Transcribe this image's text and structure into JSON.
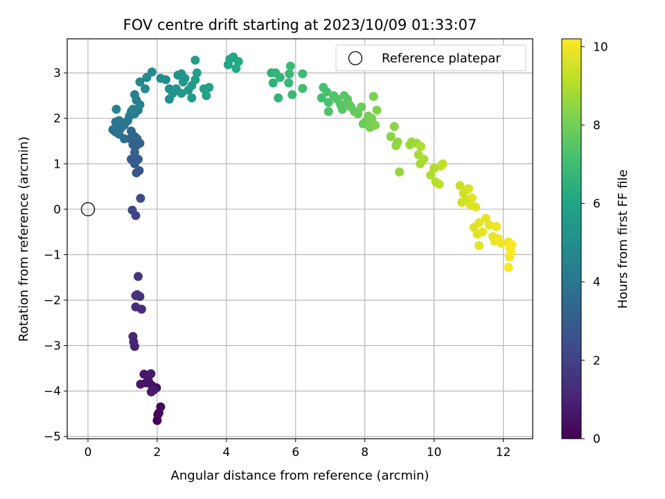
{
  "chart_data": {
    "type": "scatter",
    "title": "FOV centre drift starting at 2023/10/09 01:33:07",
    "xlabel": "Angular distance from reference (arcmin)",
    "ylabel": "Rotation from reference (arcmin)",
    "xlim": [
      -0.6,
      12.85
    ],
    "ylim": [
      -5.05,
      3.75
    ],
    "xticks": [
      0,
      2,
      4,
      6,
      8,
      10,
      12
    ],
    "yticks": [
      -5,
      -4,
      -3,
      -2,
      -1,
      0,
      1,
      2,
      3
    ],
    "grid": true,
    "legend": {
      "placement": "top-right",
      "entries": [
        "Reference platepar"
      ]
    },
    "reference_point": {
      "x": 0,
      "y": 0
    },
    "colorbar": {
      "label": "Hours from first FF file",
      "min": 0,
      "max": 10.2,
      "ticks": [
        0,
        2,
        4,
        6,
        8,
        10
      ],
      "colormap": "viridis"
    },
    "points": [
      [
        2.0,
        -4.65,
        0.1
      ],
      [
        2.02,
        -4.52,
        0.15
      ],
      [
        2.05,
        -4.48,
        0.2
      ],
      [
        2.1,
        -4.35,
        0.25
      ],
      [
        1.98,
        -3.93,
        0.4
      ],
      [
        1.85,
        -3.88,
        0.45
      ],
      [
        1.75,
        -3.78,
        0.5
      ],
      [
        1.68,
        -3.82,
        0.55
      ],
      [
        1.52,
        -3.85,
        0.6
      ],
      [
        1.62,
        -3.63,
        0.65
      ],
      [
        1.82,
        -3.62,
        0.7
      ],
      [
        1.83,
        -4.02,
        0.75
      ],
      [
        1.9,
        -3.98,
        0.8
      ],
      [
        1.35,
        -3.02,
        1.0
      ],
      [
        1.32,
        -2.92,
        1.05
      ],
      [
        1.3,
        -2.8,
        1.1
      ],
      [
        1.55,
        -2.2,
        1.3
      ],
      [
        1.38,
        -2.15,
        1.35
      ],
      [
        1.42,
        -1.88,
        1.4
      ],
      [
        1.5,
        -1.92,
        1.45
      ],
      [
        1.38,
        -1.9,
        1.5
      ],
      [
        1.45,
        -1.48,
        1.55
      ],
      [
        1.38,
        -0.14,
        2.0
      ],
      [
        1.28,
        -0.02,
        2.1
      ],
      [
        1.52,
        0.24,
        2.3
      ],
      [
        1.4,
        0.8,
        2.6
      ],
      [
        1.48,
        0.85,
        2.7
      ],
      [
        1.35,
        1.0,
        2.8
      ],
      [
        1.25,
        1.1,
        2.9
      ],
      [
        1.45,
        1.1,
        3.0
      ],
      [
        1.35,
        1.25,
        3.05
      ],
      [
        1.4,
        1.4,
        3.1
      ],
      [
        1.3,
        1.42,
        3.15
      ],
      [
        1.5,
        1.45,
        3.2
      ],
      [
        1.42,
        1.55,
        3.25
      ],
      [
        1.22,
        1.55,
        3.3
      ],
      [
        1.35,
        1.6,
        3.35
      ],
      [
        1.25,
        1.72,
        3.4
      ],
      [
        1.05,
        1.55,
        3.6
      ],
      [
        0.9,
        1.65,
        3.7
      ],
      [
        0.8,
        1.7,
        3.75
      ],
      [
        0.72,
        1.75,
        3.8
      ],
      [
        0.85,
        1.82,
        3.85
      ],
      [
        0.95,
        1.78,
        3.9
      ],
      [
        1.05,
        1.85,
        3.95
      ],
      [
        0.8,
        1.92,
        4.0
      ],
      [
        0.9,
        1.95,
        4.05
      ],
      [
        1.15,
        1.95,
        4.1
      ],
      [
        1.2,
        2.05,
        4.15
      ],
      [
        1.25,
        2.15,
        4.2
      ],
      [
        1.35,
        2.1,
        4.25
      ],
      [
        1.45,
        2.18,
        4.3
      ],
      [
        1.5,
        2.3,
        4.35
      ],
      [
        1.4,
        2.4,
        4.4
      ],
      [
        1.35,
        2.52,
        4.45
      ],
      [
        0.82,
        2.2,
        4.5
      ],
      [
        1.3,
        2.2,
        4.55
      ],
      [
        1.5,
        2.8,
        4.7
      ],
      [
        1.7,
        2.9,
        4.75
      ],
      [
        1.65,
        2.65,
        4.8
      ],
      [
        1.85,
        3.02,
        4.85
      ],
      [
        2.1,
        2.88,
        4.9
      ],
      [
        2.25,
        2.85,
        4.95
      ],
      [
        2.35,
        2.65,
        5.0
      ],
      [
        2.35,
        2.42,
        5.05
      ],
      [
        2.45,
        2.55,
        5.1
      ],
      [
        2.55,
        2.65,
        5.15
      ],
      [
        2.6,
        2.95,
        5.2
      ],
      [
        2.7,
        2.98,
        5.25
      ],
      [
        2.75,
        2.8,
        5.3
      ],
      [
        2.8,
        2.88,
        5.35
      ],
      [
        2.7,
        2.55,
        5.4
      ],
      [
        2.9,
        2.62,
        5.45
      ],
      [
        3.0,
        2.72,
        5.5
      ],
      [
        3.0,
        2.45,
        5.55
      ],
      [
        3.1,
        2.85,
        5.6
      ],
      [
        3.15,
        3.0,
        5.65
      ],
      [
        3.1,
        3.28,
        5.7
      ],
      [
        3.35,
        2.65,
        5.75
      ],
      [
        3.42,
        2.5,
        5.8
      ],
      [
        3.5,
        2.68,
        5.85
      ],
      [
        4.05,
        3.18,
        6.0
      ],
      [
        4.1,
        3.3,
        6.05
      ],
      [
        4.2,
        3.35,
        6.1
      ],
      [
        4.28,
        3.1,
        6.15
      ],
      [
        4.35,
        3.25,
        6.2
      ],
      [
        5.3,
        3.0,
        6.5
      ],
      [
        5.35,
        2.78,
        6.55
      ],
      [
        5.42,
        3.0,
        6.6
      ],
      [
        5.5,
        2.45,
        6.65
      ],
      [
        5.55,
        2.9,
        6.7
      ],
      [
        5.8,
        2.78,
        6.75
      ],
      [
        5.82,
        2.98,
        6.8
      ],
      [
        5.85,
        3.15,
        6.85
      ],
      [
        5.9,
        2.52,
        6.9
      ],
      [
        6.2,
        2.98,
        6.95
      ],
      [
        6.2,
        2.66,
        7.0
      ],
      [
        6.75,
        2.45,
        7.1
      ],
      [
        6.8,
        2.68,
        7.15
      ],
      [
        6.9,
        2.58,
        7.2
      ],
      [
        6.95,
        2.35,
        7.25
      ],
      [
        6.95,
        2.15,
        7.3
      ],
      [
        7.1,
        2.5,
        7.35
      ],
      [
        7.2,
        2.42,
        7.4
      ],
      [
        7.3,
        2.3,
        7.45
      ],
      [
        7.35,
        2.2,
        7.5
      ],
      [
        7.4,
        2.5,
        7.55
      ],
      [
        7.5,
        2.42,
        7.6
      ],
      [
        7.55,
        2.3,
        7.65
      ],
      [
        7.6,
        2.25,
        7.7
      ],
      [
        7.7,
        2.15,
        7.75
      ],
      [
        7.8,
        2.1,
        7.8
      ],
      [
        7.9,
        2.25,
        7.85
      ],
      [
        7.95,
        1.88,
        7.9
      ],
      [
        8.05,
        1.95,
        7.95
      ],
      [
        8.1,
        2.05,
        8.0
      ],
      [
        8.15,
        1.8,
        8.05
      ],
      [
        8.2,
        2.0,
        8.1
      ],
      [
        8.25,
        2.48,
        8.15
      ],
      [
        8.3,
        1.85,
        8.2
      ],
      [
        8.35,
        2.18,
        8.25
      ],
      [
        8.75,
        1.6,
        8.4
      ],
      [
        8.85,
        1.82,
        8.45
      ],
      [
        8.9,
        1.4,
        8.5
      ],
      [
        8.95,
        1.48,
        8.55
      ],
      [
        9.0,
        0.82,
        8.6
      ],
      [
        9.3,
        1.42,
        8.65
      ],
      [
        9.35,
        1.48,
        8.7
      ],
      [
        9.5,
        1.45,
        8.75
      ],
      [
        9.55,
        1.2,
        8.8
      ],
      [
        9.6,
        1.0,
        8.85
      ],
      [
        9.7,
        1.1,
        8.9
      ],
      [
        9.62,
        1.38,
        8.95
      ],
      [
        9.9,
        0.75,
        9.0
      ],
      [
        10.0,
        0.9,
        9.05
      ],
      [
        10.05,
        0.6,
        9.1
      ],
      [
        10.15,
        0.55,
        9.15
      ],
      [
        10.2,
        0.95,
        9.2
      ],
      [
        10.25,
        1.0,
        9.25
      ],
      [
        10.75,
        0.52,
        9.35
      ],
      [
        10.8,
        0.15,
        9.4
      ],
      [
        10.85,
        0.35,
        9.45
      ],
      [
        10.9,
        0.42,
        9.5
      ],
      [
        10.95,
        0.2,
        9.55
      ],
      [
        11.0,
        0.45,
        9.6
      ],
      [
        11.05,
        0.1,
        9.65
      ],
      [
        11.1,
        0.25,
        9.7
      ],
      [
        11.15,
        -0.4,
        9.72
      ],
      [
        11.2,
        0.05,
        9.74
      ],
      [
        11.25,
        -0.55,
        9.76
      ],
      [
        11.3,
        -0.8,
        9.78
      ],
      [
        11.3,
        -0.3,
        9.8
      ],
      [
        11.4,
        -0.5,
        9.82
      ],
      [
        11.5,
        -0.2,
        9.84
      ],
      [
        11.6,
        -0.35,
        9.86
      ],
      [
        11.7,
        -0.6,
        9.88
      ],
      [
        11.75,
        -0.7,
        9.9
      ],
      [
        11.8,
        -0.38,
        9.92
      ],
      [
        11.85,
        -0.65,
        9.94
      ],
      [
        11.95,
        -0.75,
        9.96
      ],
      [
        12.15,
        -0.72,
        10.0
      ],
      [
        12.2,
        -0.85,
        10.05
      ],
      [
        12.18,
        -1.05,
        10.1
      ],
      [
        12.15,
        -1.28,
        10.15
      ],
      [
        12.22,
        -0.95,
        10.18
      ],
      [
        12.25,
        -0.78,
        10.2
      ]
    ]
  }
}
